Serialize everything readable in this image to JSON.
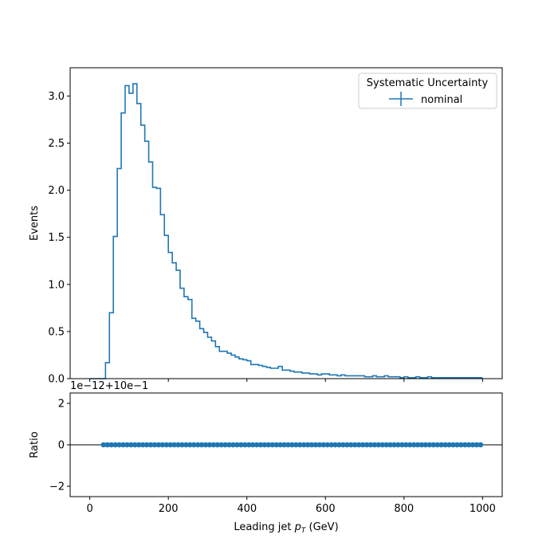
{
  "chart_data": [
    {
      "type": "line",
      "panel": "main",
      "ylabel": "Events",
      "xlim": [
        -50,
        1050
      ],
      "ylim": [
        0,
        3.3
      ],
      "yticks": [
        0.0,
        0.5,
        1.0,
        1.5,
        2.0,
        2.5,
        3.0
      ],
      "ytick_labels": [
        "0.0",
        "0.5",
        "1.0",
        "1.5",
        "2.0",
        "2.5",
        "3.0"
      ],
      "grid": false,
      "legend": {
        "title": "Systematic Uncertainty",
        "placement": "top-right",
        "entries": [
          "nominal"
        ]
      },
      "series": [
        {
          "name": "nominal",
          "color": "#1f77b4",
          "draw": "steps",
          "bin_edges": [
            0,
            10,
            20,
            30,
            40,
            50,
            60,
            70,
            80,
            90,
            100,
            110,
            120,
            130,
            140,
            150,
            160,
            170,
            180,
            190,
            200,
            210,
            220,
            230,
            240,
            250,
            260,
            270,
            280,
            290,
            300,
            310,
            320,
            330,
            340,
            350,
            360,
            370,
            380,
            390,
            400,
            410,
            420,
            430,
            440,
            450,
            460,
            470,
            480,
            490,
            500,
            510,
            520,
            530,
            540,
            550,
            560,
            570,
            580,
            590,
            600,
            610,
            620,
            630,
            640,
            650,
            660,
            670,
            680,
            690,
            700,
            710,
            720,
            730,
            740,
            750,
            760,
            770,
            780,
            790,
            800,
            810,
            820,
            830,
            840,
            850,
            860,
            870,
            880,
            890,
            900,
            910,
            920,
            930,
            940,
            950,
            960,
            970,
            980,
            990,
            1000
          ],
          "values": [
            0.0,
            0.0,
            0.0,
            0.0,
            0.17,
            0.7,
            1.51,
            2.23,
            2.82,
            3.11,
            3.03,
            3.13,
            2.92,
            2.69,
            2.52,
            2.3,
            2.03,
            2.02,
            1.74,
            1.52,
            1.34,
            1.23,
            1.15,
            0.96,
            0.87,
            0.84,
            0.64,
            0.61,
            0.53,
            0.49,
            0.44,
            0.4,
            0.34,
            0.29,
            0.29,
            0.27,
            0.25,
            0.23,
            0.21,
            0.2,
            0.19,
            0.15,
            0.15,
            0.14,
            0.13,
            0.12,
            0.11,
            0.11,
            0.13,
            0.09,
            0.09,
            0.08,
            0.07,
            0.07,
            0.06,
            0.06,
            0.05,
            0.05,
            0.04,
            0.05,
            0.05,
            0.04,
            0.04,
            0.03,
            0.04,
            0.03,
            0.03,
            0.03,
            0.03,
            0.03,
            0.02,
            0.02,
            0.03,
            0.02,
            0.02,
            0.03,
            0.02,
            0.02,
            0.02,
            0.01,
            0.02,
            0.01,
            0.01,
            0.02,
            0.01,
            0.01,
            0.02,
            0.01,
            0.01,
            0.01,
            0.01,
            0.01,
            0.01,
            0.01,
            0.01,
            0.01,
            0.01,
            0.01,
            0.01,
            0.01
          ]
        }
      ]
    },
    {
      "type": "scatter",
      "panel": "ratio",
      "ylabel": "Ratio",
      "xlabel_prefix": "Leading jet ",
      "xlabel_math_main": "p",
      "xlabel_math_sub": "T",
      "xlabel_suffix": " (GeV)",
      "offset_text": "1e−12+10e−1",
      "xlim": [
        -50,
        1050
      ],
      "ylim": [
        -2.5,
        2.5
      ],
      "xticks": [
        0,
        200,
        400,
        600,
        800,
        1000
      ],
      "xtick_labels": [
        "0",
        "200",
        "400",
        "600",
        "800",
        "1000"
      ],
      "yticks": [
        -2,
        0,
        2
      ],
      "ytick_labels": [
        "−2",
        "0",
        "2"
      ],
      "reference_line": 0,
      "grid": false,
      "series": [
        {
          "color": "#1f77b4",
          "x": [
            35,
            45,
            55,
            65,
            75,
            85,
            95,
            105,
            115,
            125,
            135,
            145,
            155,
            165,
            175,
            185,
            195,
            205,
            215,
            225,
            235,
            245,
            255,
            265,
            275,
            285,
            295,
            305,
            315,
            325,
            335,
            345,
            355,
            365,
            375,
            385,
            395,
            405,
            415,
            425,
            435,
            445,
            455,
            465,
            475,
            485,
            495,
            505,
            515,
            525,
            535,
            545,
            555,
            565,
            575,
            585,
            595,
            605,
            615,
            625,
            635,
            645,
            655,
            665,
            675,
            685,
            695,
            705,
            715,
            725,
            735,
            745,
            755,
            765,
            775,
            785,
            795,
            805,
            815,
            825,
            835,
            845,
            855,
            865,
            875,
            885,
            895,
            905,
            915,
            925,
            935,
            945,
            955,
            965,
            975,
            985,
            995
          ],
          "y_value": 0
        }
      ]
    }
  ]
}
